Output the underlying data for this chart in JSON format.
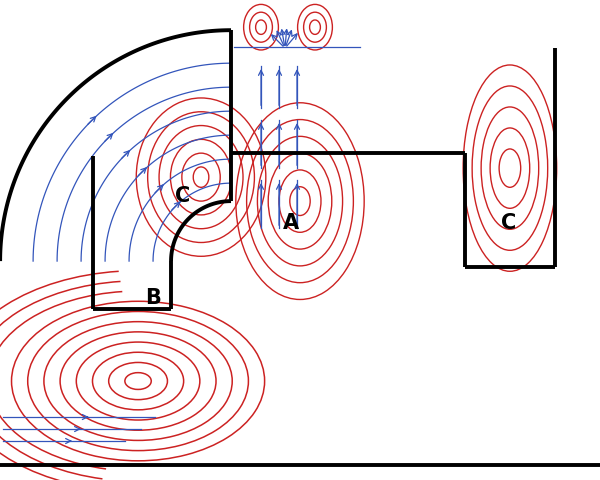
{
  "fig_width": 6.0,
  "fig_height": 4.81,
  "dpi": 100,
  "bg_color": "#ffffff",
  "wall_color": "#000000",
  "wall_lw": 2.8,
  "red_color": "#cc2222",
  "blue_color": "#3355bb",
  "label_A": "A",
  "label_B": "B",
  "label_C": "C",
  "label_fontsize": 15,
  "label_fontweight": "bold",
  "xlim": [
    0,
    10
  ],
  "ylim": [
    0,
    8.02
  ]
}
